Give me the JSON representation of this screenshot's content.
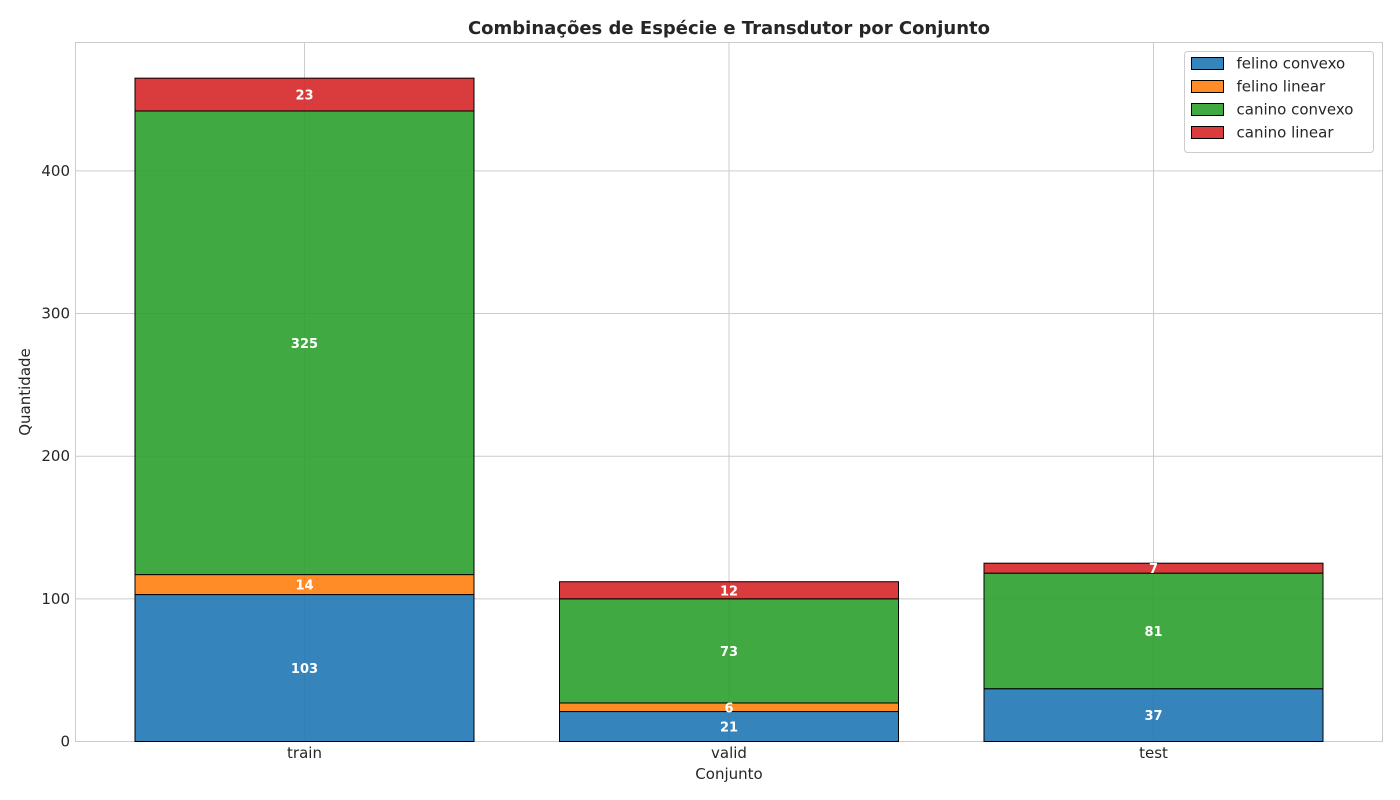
{
  "chart_data": {
    "type": "bar",
    "stacked": true,
    "title": "Combinações de Espécie e Transdutor por Conjunto",
    "xlabel": "Conjunto",
    "ylabel": "Quantidade",
    "categories": [
      "train",
      "valid",
      "test"
    ],
    "ylim": [
      0,
      490
    ],
    "yticks": [
      0,
      100,
      200,
      300,
      400
    ],
    "grid": true,
    "legend_position": "top-right",
    "series": [
      {
        "name": "felino convexo",
        "color": "#1f77b4",
        "values": [
          103,
          21,
          37
        ]
      },
      {
        "name": "felino linear",
        "color": "#ff7f0e",
        "values": [
          14,
          6,
          0
        ]
      },
      {
        "name": "canino convexo",
        "color": "#2ca02c",
        "values": [
          325,
          73,
          81
        ]
      },
      {
        "name": "canino linear",
        "color": "#d62728",
        "values": [
          23,
          12,
          7
        ]
      }
    ]
  }
}
